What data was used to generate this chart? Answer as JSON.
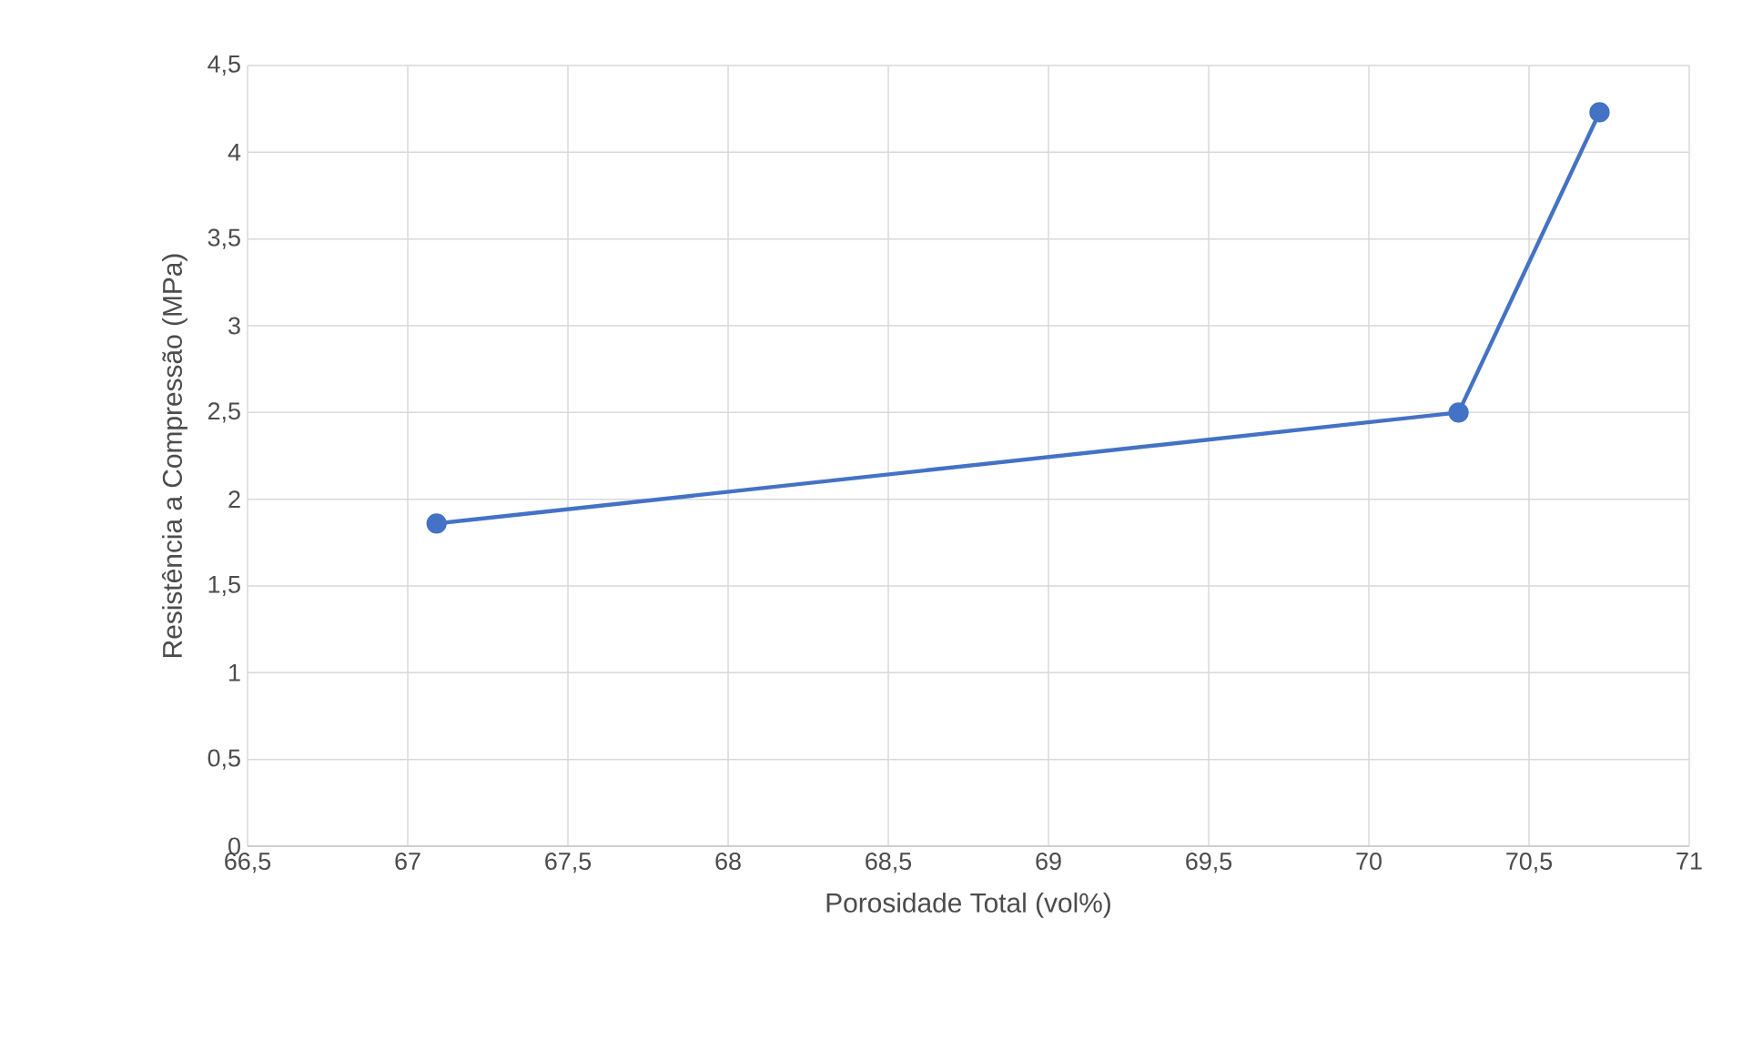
{
  "chart_data": {
    "type": "line",
    "xlabel": "Porosidade Total (vol%)",
    "ylabel": "Resistência a Compressão (MPa)",
    "x": [
      67.09,
      70.28,
      70.72
    ],
    "series": [
      {
        "color": "#4472c4",
        "values": [
          1.86,
          2.5,
          4.23
        ]
      }
    ],
    "xlim": [
      66.5,
      71
    ],
    "xticks": [
      {
        "value": 66.5,
        "label": "66,5"
      },
      67,
      {
        "value": 67.5,
        "label": "67,5"
      },
      68,
      {
        "value": 68.5,
        "label": "68,5"
      },
      69,
      {
        "value": 69.5,
        "label": "69,5"
      },
      70,
      {
        "value": 70.5,
        "label": "70,5"
      },
      71
    ],
    "ylim": [
      0,
      4.5
    ],
    "yticks": [
      0,
      {
        "value": 0.5,
        "label": "0,5"
      },
      1,
      {
        "value": 1.5,
        "label": "1,5"
      },
      2,
      {
        "value": 2.5,
        "label": "2,5"
      },
      3,
      {
        "value": 3.5,
        "label": "3,5"
      },
      4,
      {
        "value": 4.5,
        "label": "4,5"
      }
    ],
    "grid": true,
    "marker": "circle",
    "line_style": "solid"
  }
}
